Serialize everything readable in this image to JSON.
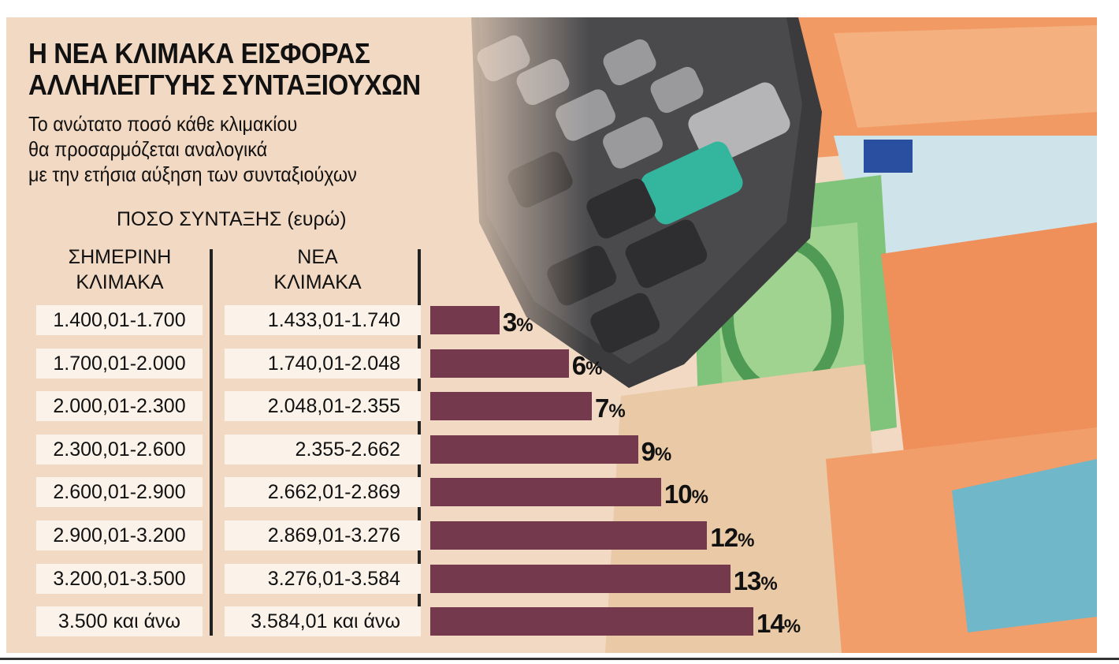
{
  "title": {
    "line1": "Η ΝΕΑ ΚΛΙΜΑΚΑ ΕΙΣΦΟΡΑΣ",
    "line2": "ΑΛΛΗΛΕΓΓΥΗΣ ΣΥΝΤΑΞΙΟΥΧΩΝ"
  },
  "subtitle": {
    "line1": "Το ανώτατο ποσό κάθε κλιμακίου",
    "line2": "θα προσαρμόζεται αναλογικά",
    "line3": "με την ετήσια αύξηση των συνταξιούχων"
  },
  "table_header": {
    "amount_label": "ΠΟΣΟ ΣΥΝΤΑΞΗΣ (ευρώ)",
    "current_line1": "ΣΗΜΕΡΙΝΗ",
    "current_line2": "ΚΛΙΜΑΚΑ",
    "new_line1": "ΝΕΑ",
    "new_line2": "ΚΛΙΜΑΚΑ"
  },
  "colors": {
    "bar": "#74394c",
    "background": "#f2d9c3",
    "cell": "#fbf3ea"
  },
  "chart_data": {
    "type": "bar",
    "orientation": "horizontal",
    "title": "Η ΝΕΑ ΚΛΙΜΑΚΑ ΕΙΣΦΟΡΑΣ ΑΛΛΗΛΕΓΓΥΗΣ ΣΥΝΤΑΞΙΟΥΧΩΝ",
    "value_suffix": "%",
    "xlim": [
      0,
      14
    ],
    "grid": false,
    "legend": "none",
    "rows": [
      {
        "current": "1.400,01-1.700",
        "new": "1.433,01-1.740",
        "value": 3
      },
      {
        "current": "1.700,01-2.000",
        "new": "1.740,01-2.048",
        "value": 6
      },
      {
        "current": "2.000,01-2.300",
        "new": "2.048,01-2.355",
        "value": 7
      },
      {
        "current": "2.300,01-2.600",
        "new": "2.355-2.662",
        "value": 9
      },
      {
        "current": "2.600,01-2.900",
        "new": "2.662,01-2.869",
        "value": 10
      },
      {
        "current": "2.900,01-3.200",
        "new": "2.869,01-3.276",
        "value": 12
      },
      {
        "current": "3.200,01-3.500",
        "new": "3.276,01-3.584",
        "value": 13
      },
      {
        "current": "3.500 και άνω",
        "new": "3.584,01 και άνω",
        "value": 14
      }
    ]
  }
}
